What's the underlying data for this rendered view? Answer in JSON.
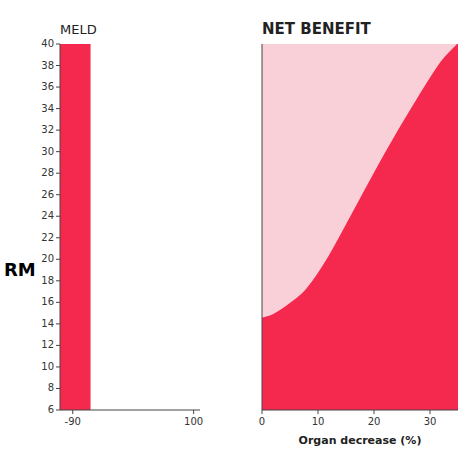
{
  "chart_data": [
    {
      "type": "span",
      "title": "MELD",
      "x": [
        -110,
        -62
      ],
      "color": "#F5294E",
      "xlim": [
        -110,
        110
      ],
      "ylim": [
        6,
        40
      ],
      "xticks": [
        -90,
        100
      ],
      "yticks": [
        6,
        8,
        10,
        12,
        14,
        16,
        18,
        20,
        22,
        24,
        26,
        28,
        30,
        32,
        34,
        36,
        38,
        40
      ],
      "annotations": [
        "RM"
      ]
    },
    {
      "type": "area",
      "title": "NET BENEFIT",
      "x_label": "Organ decrease (%)",
      "x": [
        0,
        2,
        5,
        8,
        12,
        17,
        22,
        27,
        32,
        35
      ],
      "values": [
        25,
        26,
        29,
        33,
        42,
        56,
        70,
        83,
        95,
        100
      ],
      "color": "#F5294E",
      "xlim": [
        0,
        35
      ],
      "ylim": [
        0,
        100
      ],
      "xticks": [
        0,
        10,
        20,
        30
      ],
      "tick_labels": "x"
    }
  ]
}
